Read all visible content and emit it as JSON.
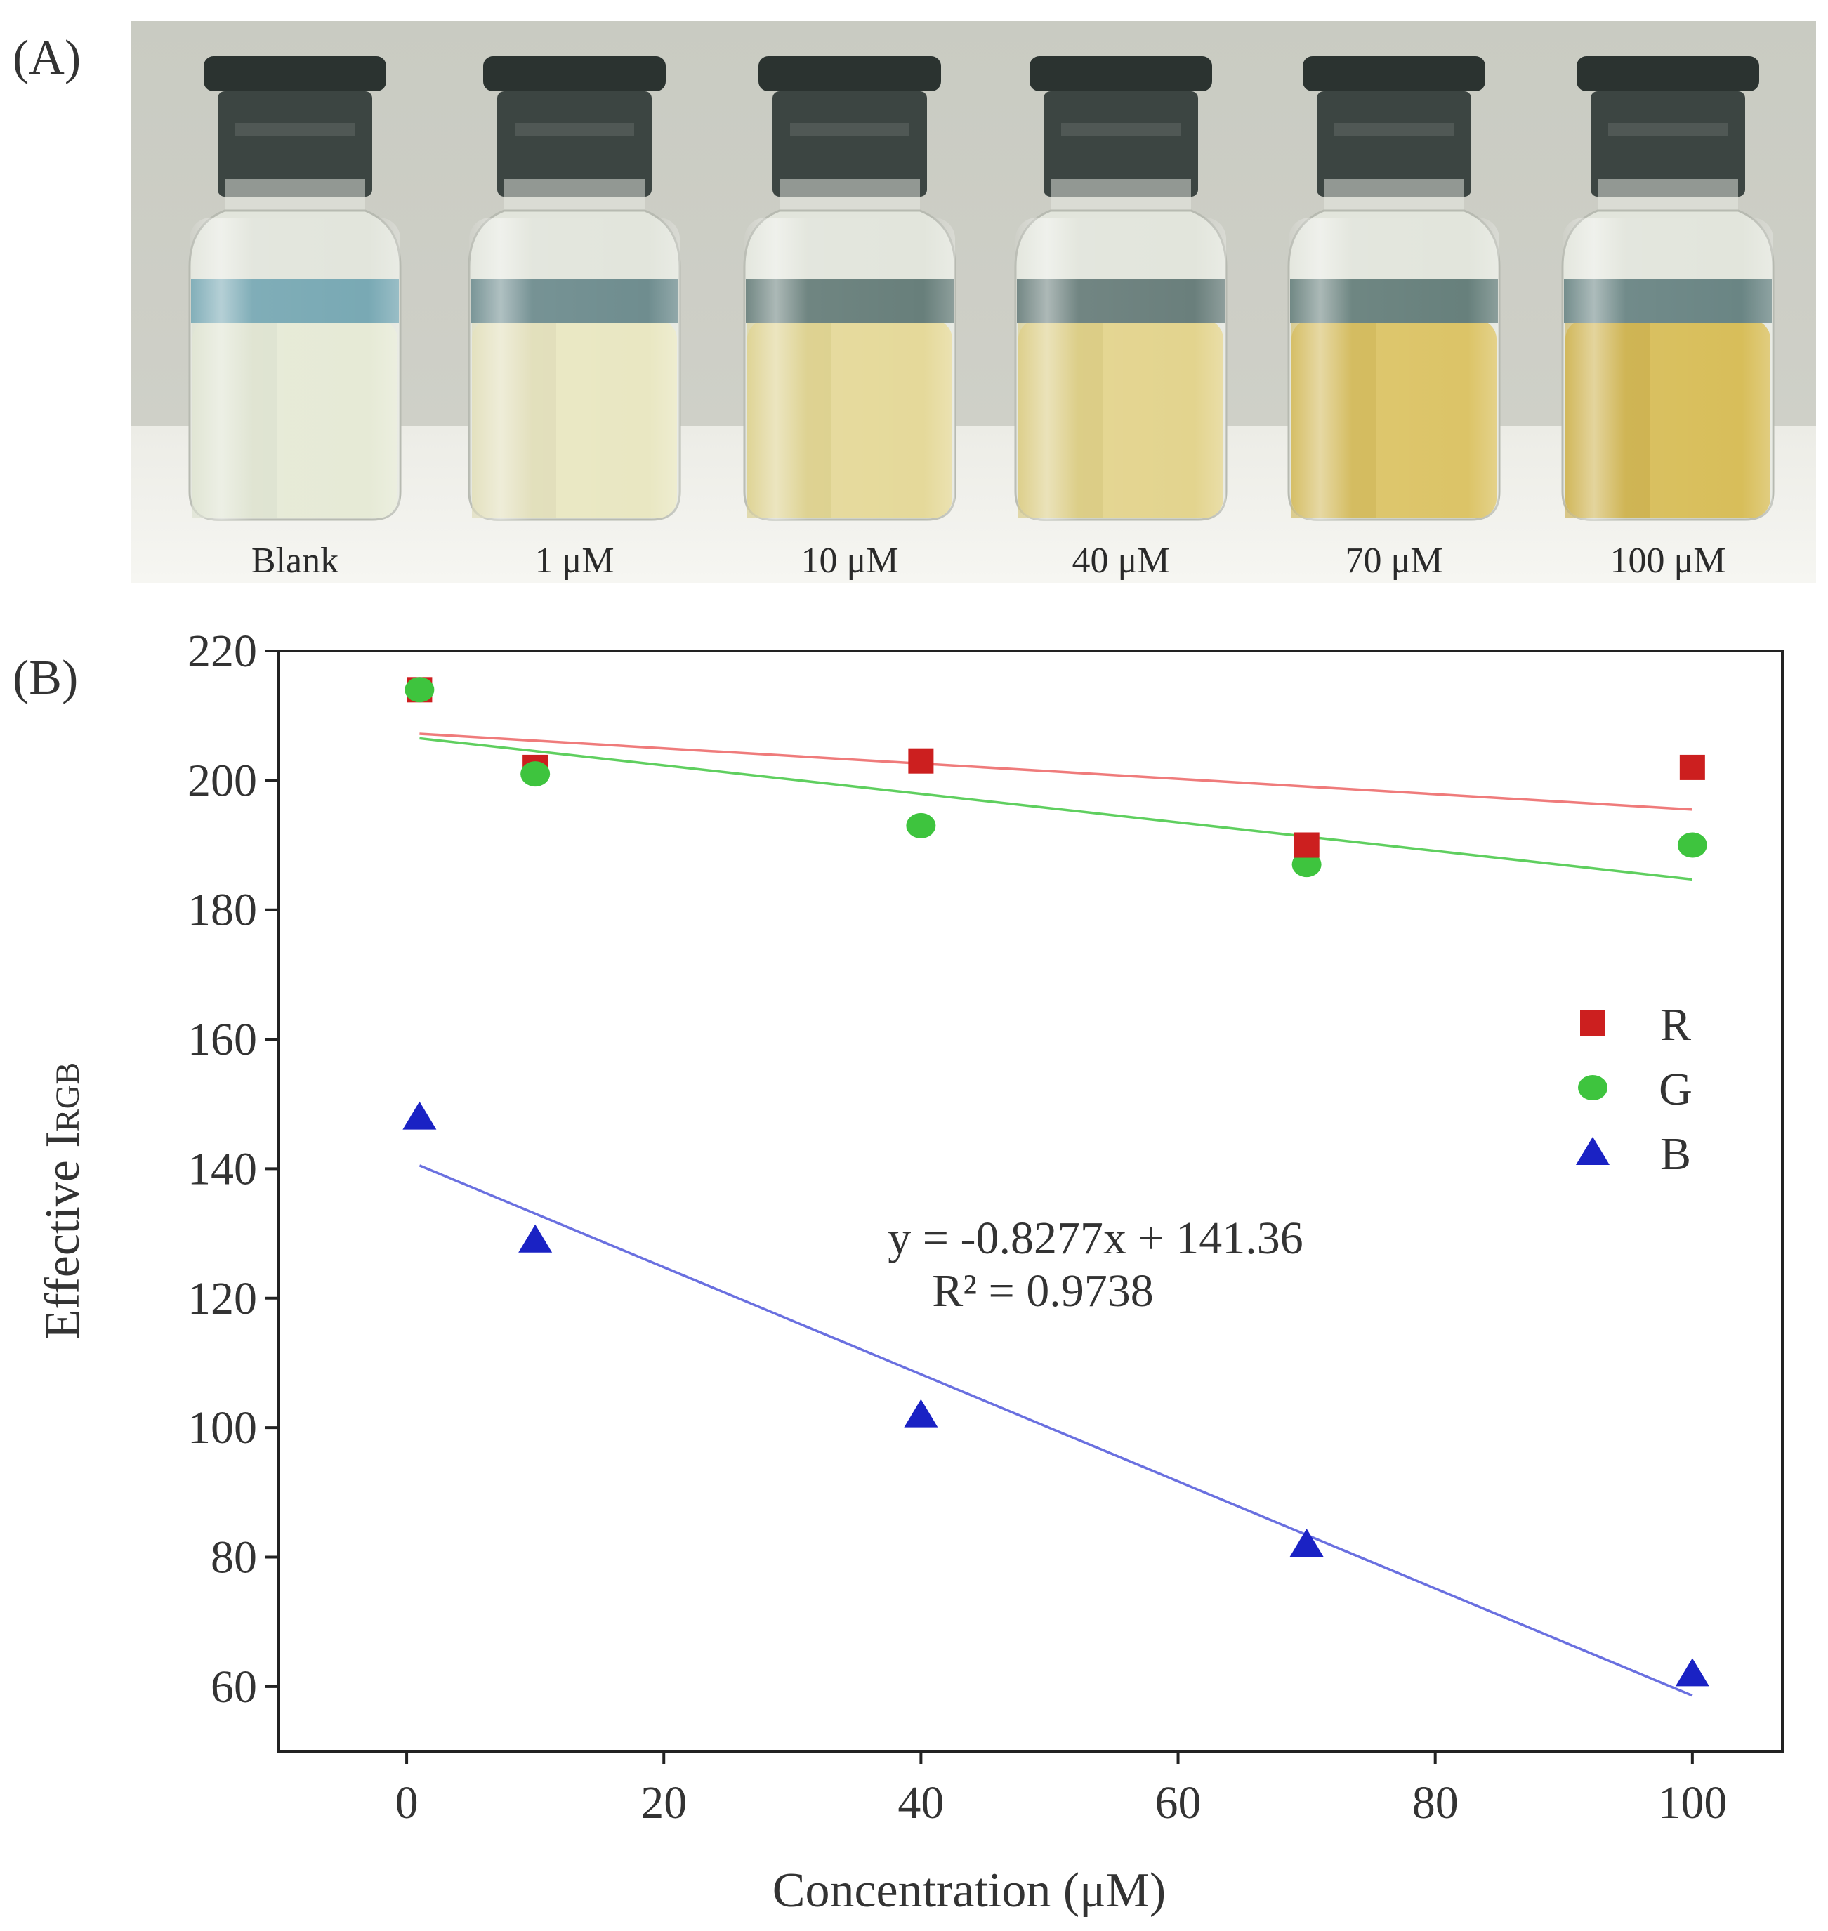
{
  "panel_a": {
    "label": "(A)",
    "vials": [
      {
        "label": "Blank",
        "liquid_color": "#e6ead6",
        "band_color": "#79a9b4",
        "shade_color": "#d9decb"
      },
      {
        "label": "1 μM",
        "liquid_color": "#e9e7c2",
        "band_color": "#6f8d8f",
        "shade_color": "#dcd9b3"
      },
      {
        "label": "10 μM",
        "liquid_color": "#e5d99a",
        "band_color": "#687f7b",
        "shade_color": "#d6c983"
      },
      {
        "label": "40 μM",
        "liquid_color": "#e3d48e",
        "band_color": "#6a7f7c",
        "shade_color": "#d4c478"
      },
      {
        "label": "70 μM",
        "liquid_color": "#dcc467",
        "band_color": "#67807c",
        "shade_color": "#cbb250"
      },
      {
        "label": "100 μM",
        "liquid_color": "#d8be5a",
        "band_color": "#6a8584",
        "shade_color": "#c6a942"
      }
    ]
  },
  "panel_b": {
    "label": "(B)"
  },
  "chart_data": {
    "type": "scatter",
    "title": "",
    "xlabel": "Concentration (μM)",
    "ylabel_main": "Effective I",
    "ylabel_sub": "RGB",
    "xlim": [
      -10,
      107
    ],
    "ylim": [
      50,
      220
    ],
    "xticks": [
      0,
      20,
      40,
      60,
      80,
      100
    ],
    "yticks": [
      60,
      80,
      100,
      120,
      140,
      160,
      180,
      200,
      220
    ],
    "grid": false,
    "legend_position": "right",
    "series": [
      {
        "name": "R",
        "marker": "square",
        "color": "#cc1f1f",
        "line_color": "#ef7b7b",
        "x": [
          1,
          10,
          40,
          70,
          100
        ],
        "y": [
          214,
          202,
          203,
          190,
          202
        ],
        "fit": {
          "x": [
            1,
            100
          ],
          "y": [
            207.2,
            195.5
          ]
        }
      },
      {
        "name": "G",
        "marker": "circle",
        "color": "#3ec43e",
        "line_color": "#5fcf5f",
        "x": [
          1,
          10,
          40,
          70,
          100
        ],
        "y": [
          214,
          201,
          193,
          187,
          190
        ],
        "fit": {
          "x": [
            1,
            100
          ],
          "y": [
            206.5,
            184.7
          ]
        }
      },
      {
        "name": "B",
        "marker": "triangle",
        "color": "#1a22c4",
        "line_color": "#6a70e0",
        "x": [
          1,
          10,
          40,
          70,
          100
        ],
        "y": [
          148,
          129,
          102,
          82,
          62
        ],
        "fit": {
          "x": [
            1,
            100
          ],
          "y": [
            140.5,
            58.6
          ]
        }
      }
    ],
    "annotations": [
      "y = -0.8277x + 141.36",
      "R² = 0.9738"
    ]
  }
}
